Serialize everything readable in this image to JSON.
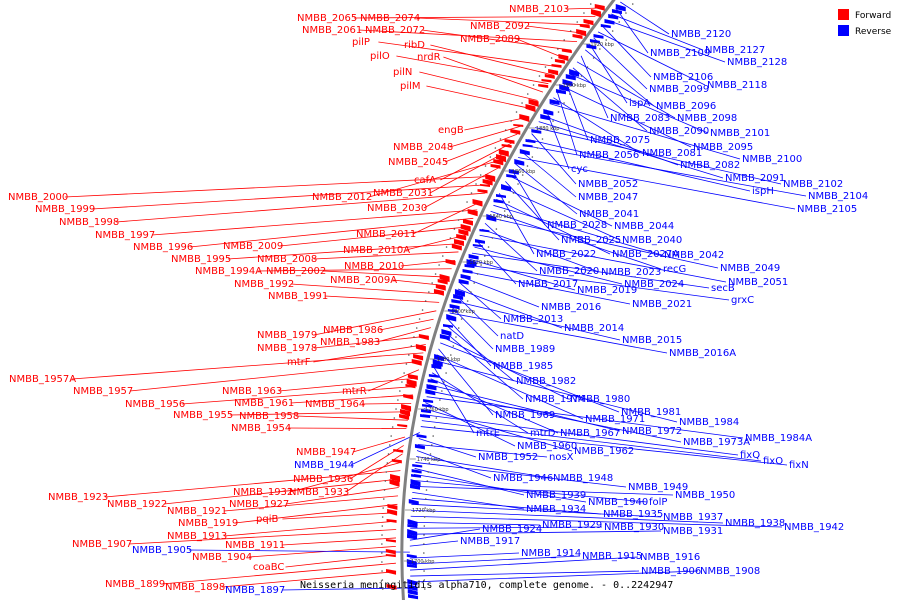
{
  "caption": "Neisseria meningitidis alpha710, complete genome. - 0..2242947",
  "legend": [
    {
      "label": "Forward",
      "color": "#ff0000"
    },
    {
      "label": "Reverse",
      "color": "#0000ff"
    }
  ],
  "colors": {
    "forward": "#ff0000",
    "reverse": "#0000ff",
    "backbone": "#808080"
  },
  "ticks": [
    "1920 kbp",
    "1900 kbp",
    "1880 kbp",
    "1860 kbp",
    "1840 kbp",
    "1820 kbp",
    "1800 kbp",
    "1780 kbp",
    "1760 kbp",
    "1740 kbp",
    "1720 kbp",
    "1700 kbp"
  ],
  "forward_labels": [
    "NMBB_2103",
    "NMBB_2065",
    "NMBB_2074",
    "NMBB_2092",
    "NMBB_2061",
    "NMBB_2072",
    "NMBB_2089",
    "pilP",
    "ribD",
    "pilO",
    "nrdR",
    "pilN",
    "pilM",
    "engB",
    "NMBB_2048",
    "NMBB_2045",
    "cafA",
    "NMBB_2031",
    "NMBB_2012",
    "NMBB_2030",
    "NMBB_2000",
    "NMBB_1999",
    "NMBB_1998",
    "NMBB_2011",
    "NMBB_1997",
    "NMBB_1996",
    "NMBB_2009",
    "NMBB_2010A",
    "NMBB_1995",
    "NMBB_2008",
    "NMBB_2010",
    "NMBB_1994A",
    "NMBB_2002",
    "NMBB_2009A",
    "NMBB_1992",
    "NMBB_1991",
    "NMBB_1979",
    "NMBB_1986",
    "NMBB_1983",
    "NMBB_1978",
    "mtrF",
    "NMBB_1957A",
    "NMBB_1957",
    "mtrR",
    "NMBB_1963",
    "NMBB_1956",
    "NMBB_1961",
    "NMBB_1964",
    "NMBB_1955",
    "NMBB_1958",
    "NMBB_1954",
    "NMBB_1947",
    "NMBB_1936",
    "NMBB_1933",
    "NMBB_1932",
    "NMBB_1923",
    "NMBB_1922",
    "NMBB_1927",
    "NMBB_1921",
    "NMBB_1919",
    "pqiB",
    "NMBB_1913",
    "NMBB_1907",
    "NMBB_1911",
    "NMBB_1904",
    "coaBC",
    "NMBB_1899",
    "NMBB_1898"
  ],
  "reverse_labels": [
    "NMBB_2120",
    "NMBB_2109",
    "NMBB_2127",
    "NMBB_2128",
    "NMBB_2106",
    "NMBB_2118",
    "NMBB_2099",
    "ispA",
    "NMBB_2096",
    "NMBB_2083",
    "NMBB_2098",
    "NMBB_2090",
    "NMBB_2101",
    "NMBB_2075",
    "NMBB_2095",
    "NMBB_2056",
    "NMBB_2081",
    "NMBB_2100",
    "cyc",
    "NMBB_2082",
    "NMBB_2091",
    "NMBB_2102",
    "NMBB_2052",
    "ispH",
    "NMBB_2104",
    "NMBB_2047",
    "NMBB_2105",
    "NMBB_2041",
    "NMBB_2028",
    "NMBB_2044",
    "NMBB_2025",
    "NMBB_2040",
    "NMBB_2022",
    "NMBB_2027A",
    "NMBB_2042",
    "recG",
    "NMBB_2049",
    "NMBB_2020",
    "NMBB_2023",
    "NMBB_2051",
    "NMBB_2017",
    "NMBB_2024",
    "secB",
    "NMBB_2019",
    "grxC",
    "NMBB_2021",
    "NMBB_2016",
    "NMBB_2013",
    "NMBB_2014",
    "natD",
    "NMBB_2015",
    "NMBB_1989",
    "NMBB_2016A",
    "NMBB_1985",
    "NMBB_1982",
    "NMBB_1974",
    "NMBB_1980",
    "NMBB_1981",
    "NMBB_1969",
    "NMBB_1971",
    "NMBB_1984",
    "mtrE",
    "mtrD",
    "NMBB_1967",
    "NMBB_1972",
    "NMBB_1973A",
    "NMBB_1984A",
    "NMBB_1960",
    "NMBB_1962",
    "fixQ",
    "fixO",
    "fixN",
    "NMBB_1944",
    "NMBB_1952",
    "nosX",
    "NMBB_1946",
    "NMBB_1948",
    "NMBB_1949",
    "NMBB_1939",
    "NMBB_1940",
    "folP",
    "NMBB_1950",
    "NMBB_1934",
    "NMBB_1935",
    "NMBB_1937",
    "NMBB_1938",
    "NMBB_1942",
    "NMBB_1929",
    "NMBB_1930",
    "NMBB_1931",
    "NMBB_1924",
    "NMBB_1917",
    "NMBB_1905",
    "NMBB_1914",
    "NMBB_1915",
    "NMBB_1916",
    "NMBB_1906",
    "NMBB_1908",
    "NMBB_1897"
  ]
}
